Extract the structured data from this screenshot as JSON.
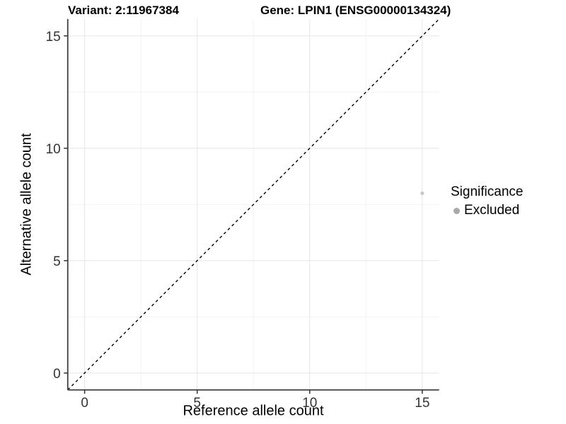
{
  "titles": {
    "variant": "Variant: 2:11967384",
    "gene": "Gene: LPIN1 (ENSG00000134324)"
  },
  "legend": {
    "title": "Significance",
    "items": [
      {
        "label": "Excluded",
        "color": "#a9a9a9"
      }
    ]
  },
  "colors": {
    "major_grid": "#e7e7e7",
    "minor_grid": "#f3f3f3",
    "axis_line": "#3f3f3f",
    "tick_mark": "#333333",
    "tick_label": "#333333",
    "identity_line": "#000000",
    "background": "#ffffff"
  },
  "chart_data": {
    "type": "scatter",
    "title": "Variant: 2:11967384 | Gene: LPIN1 (ENSG00000134324)",
    "xlabel": "Reference allele count",
    "ylabel": "Alternative allele count",
    "xlim": [
      -0.75,
      15.75
    ],
    "ylim": [
      -0.75,
      15.75
    ],
    "x_ticks": [
      0,
      5,
      10,
      15
    ],
    "y_ticks": [
      0,
      5,
      10,
      15
    ],
    "x_minor_ticks": [
      2.5,
      7.5,
      12.5
    ],
    "y_minor_ticks": [
      2.5,
      7.5,
      12.5
    ],
    "grid": true,
    "legend_position": "right",
    "series": [
      {
        "name": "Excluded",
        "color": "#c8c8c8",
        "point_radius": 2.6,
        "points": [
          {
            "x": 15,
            "y": 8
          }
        ]
      }
    ],
    "reference_line": {
      "kind": "identity",
      "equation": "y = x",
      "style": "dashed",
      "color": "#000000"
    }
  }
}
